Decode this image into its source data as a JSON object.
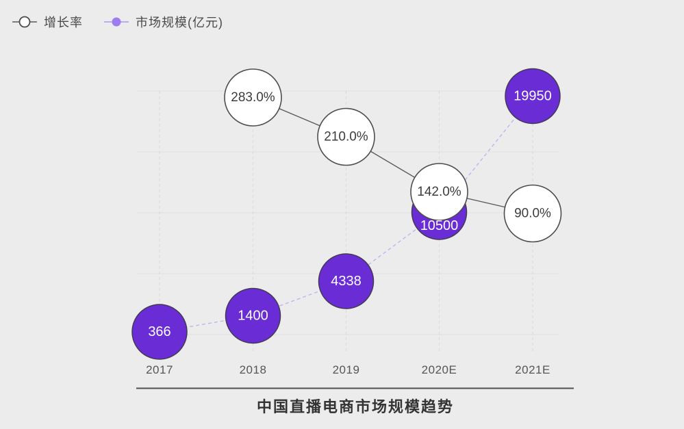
{
  "colors": {
    "background": "#ececec",
    "grid_line": "#dfdfdf",
    "grid_dash": "#d8d8d8",
    "axis_line": "#4f4f4f",
    "growth_line": "#5a5a5a",
    "growth_fill": "#ffffff",
    "growth_stroke": "#4d4d4d",
    "growth_text": "#3c3c3c",
    "market_fill": "#6a2cd5",
    "market_stroke": "#433a52",
    "market_dash_line": "#c3b2ef",
    "market_text": "#ffffff",
    "legend_dot": "#9b7df0",
    "legend_line": "#bda9f5",
    "label_text": "#555555",
    "title_text": "#333333",
    "legend_text": "#4a4a4a"
  },
  "legend": {
    "items": [
      {
        "label": "增长率",
        "marker": "open-circle"
      },
      {
        "label": "市场规模(亿元)",
        "marker": "filled-dot"
      }
    ]
  },
  "chart_data": {
    "type": "line",
    "title": "中国直播电商市场规模趋势",
    "categories": [
      "2017",
      "2018",
      "2019",
      "2020E",
      "2021E"
    ],
    "series": [
      {
        "name": "增长率",
        "style": "open-circle-solid-line",
        "unit": "%",
        "values": [
          null,
          283.0,
          210.0,
          142.0,
          90.0
        ],
        "labels": [
          "",
          "283.0%",
          "210.0%",
          "142.0%",
          "90.0%"
        ]
      },
      {
        "name": "市场规模(亿元)",
        "style": "filled-circle-dashed-line",
        "unit": "亿元",
        "values": [
          366,
          1400,
          4338,
          10500,
          19950
        ],
        "labels": [
          "366",
          "1400",
          "4338",
          "10500",
          "19950"
        ]
      }
    ],
    "legend_position": "top-left",
    "x_axis_line": true,
    "gridlines": {
      "horizontal": "solid",
      "vertical": "dashed"
    }
  }
}
